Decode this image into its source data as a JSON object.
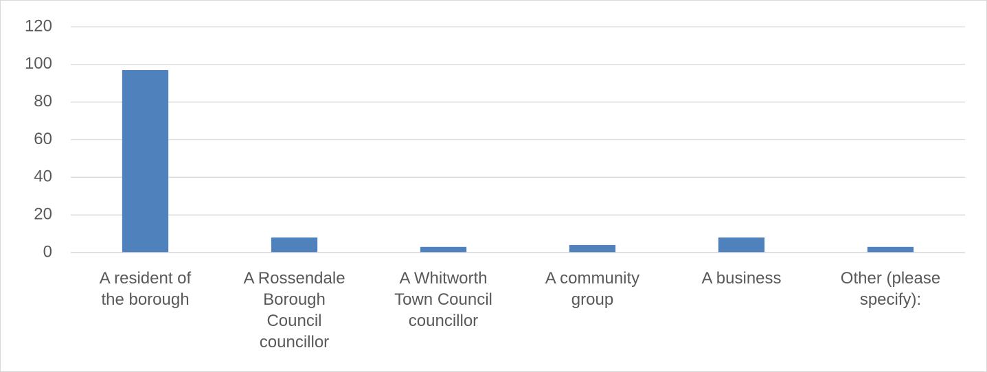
{
  "chart_data": {
    "type": "bar",
    "categories": [
      "A resident of the borough",
      "A Rossendale Borough Council councillor",
      "A Whitworth Town Council councillor",
      "A community group",
      "A business",
      "Other (please specify):"
    ],
    "values": [
      97,
      8,
      3,
      4,
      8,
      3
    ],
    "color": "#4f81bd",
    "ylim": [
      0,
      120
    ],
    "yticks": [
      0,
      20,
      40,
      60,
      80,
      100,
      120
    ],
    "grid": true
  }
}
